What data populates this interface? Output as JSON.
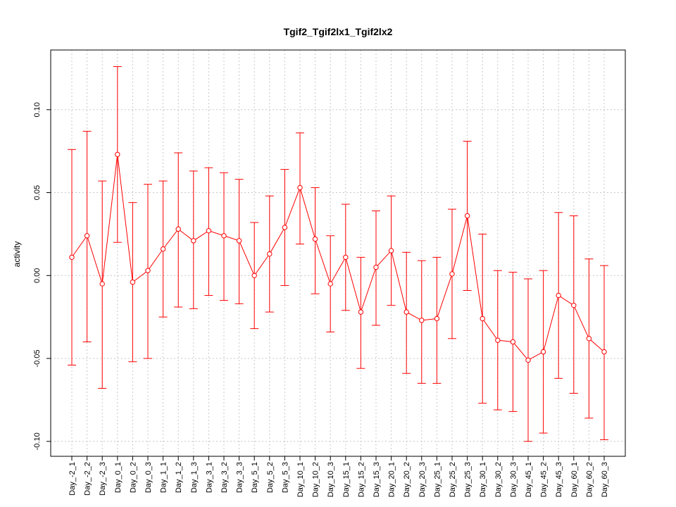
{
  "chart_data": {
    "type": "line",
    "title": "Tgif2_Tgif2lx1_Tgif2lx2",
    "xlabel": "",
    "ylabel": "activity",
    "ylim": [
      -0.109,
      0.136
    ],
    "yticks": [
      -0.1,
      -0.05,
      0.0,
      0.05,
      0.1
    ],
    "ytick_labels": [
      "-0.10",
      "-0.05",
      "0.00",
      "0.05",
      "0.10"
    ],
    "grid": true,
    "colors": {
      "series": "#ff0000",
      "grid": "#c8c8c8",
      "axis": "#000000"
    },
    "categories": [
      "Day_-2_1",
      "Day_-2_2",
      "Day_-2_3",
      "Day_0_1",
      "Day_0_2",
      "Day_0_3",
      "Day_1_1",
      "Day_1_2",
      "Day_1_3",
      "Day_3_1",
      "Day_3_2",
      "Day_3_3",
      "Day_5_1",
      "Day_5_2",
      "Day_5_3",
      "Day_10_1",
      "Day_10_2",
      "Day_10_3",
      "Day_15_1",
      "Day_15_2",
      "Day_15_3",
      "Day_20_1",
      "Day_20_2",
      "Day_20_3",
      "Day_25_1",
      "Day_25_2",
      "Day_25_3",
      "Day_30_1",
      "Day_30_2",
      "Day_30_3",
      "Day_45_1",
      "Day_45_2",
      "Day_45_3",
      "Day_60_1",
      "Day_60_2",
      "Day_60_3"
    ],
    "series": [
      {
        "name": "activity",
        "values": [
          0.011,
          0.024,
          -0.005,
          0.073,
          -0.004,
          0.003,
          0.016,
          0.028,
          0.021,
          0.027,
          0.024,
          0.021,
          0.0,
          0.013,
          0.029,
          0.053,
          0.022,
          -0.005,
          0.011,
          -0.022,
          0.005,
          0.015,
          -0.022,
          -0.027,
          -0.026,
          0.001,
          0.036,
          -0.026,
          -0.039,
          -0.04,
          -0.051,
          -0.046,
          -0.012,
          -0.018,
          -0.038,
          -0.046
        ],
        "upper": [
          0.076,
          0.087,
          0.057,
          0.126,
          0.044,
          0.055,
          0.057,
          0.074,
          0.063,
          0.065,
          0.062,
          0.058,
          0.032,
          0.048,
          0.064,
          0.086,
          0.053,
          0.024,
          0.043,
          0.011,
          0.039,
          0.048,
          0.014,
          0.009,
          0.011,
          0.04,
          0.081,
          0.025,
          0.003,
          0.002,
          -0.002,
          0.003,
          0.038,
          0.036,
          0.01,
          0.006
        ],
        "lower": [
          -0.054,
          -0.04,
          -0.068,
          0.02,
          -0.052,
          -0.05,
          -0.025,
          -0.019,
          -0.02,
          -0.012,
          -0.015,
          -0.017,
          -0.032,
          -0.022,
          -0.006,
          0.019,
          -0.011,
          -0.034,
          -0.021,
          -0.056,
          -0.03,
          -0.018,
          -0.059,
          -0.065,
          -0.065,
          -0.038,
          -0.009,
          -0.077,
          -0.081,
          -0.082,
          -0.1,
          -0.095,
          -0.062,
          -0.071,
          -0.086,
          -0.099
        ]
      }
    ]
  }
}
